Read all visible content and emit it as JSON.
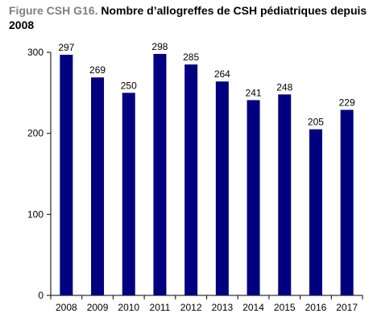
{
  "title": {
    "prefix": "Figure CSH G16.",
    "text": " Nombre d’allogreffes de CSH pédiatriques depuis 2008"
  },
  "chart_data": {
    "type": "bar",
    "categories": [
      "2008",
      "2009",
      "2010",
      "2011",
      "2012",
      "2013",
      "2014",
      "2015",
      "2016",
      "2017"
    ],
    "values": [
      297,
      269,
      250,
      298,
      285,
      264,
      241,
      248,
      205,
      229
    ],
    "data_labels": [
      "297",
      "269",
      "250",
      "298",
      "285",
      "264",
      "241",
      "248",
      "205",
      "229"
    ],
    "ylim": [
      0,
      300
    ],
    "yticks": [
      0,
      100,
      200,
      300
    ],
    "ytick_labels": [
      "0",
      "100",
      "200",
      "300"
    ],
    "bar_color": "#000080",
    "grid": false,
    "xlabel": "",
    "ylabel": ""
  }
}
